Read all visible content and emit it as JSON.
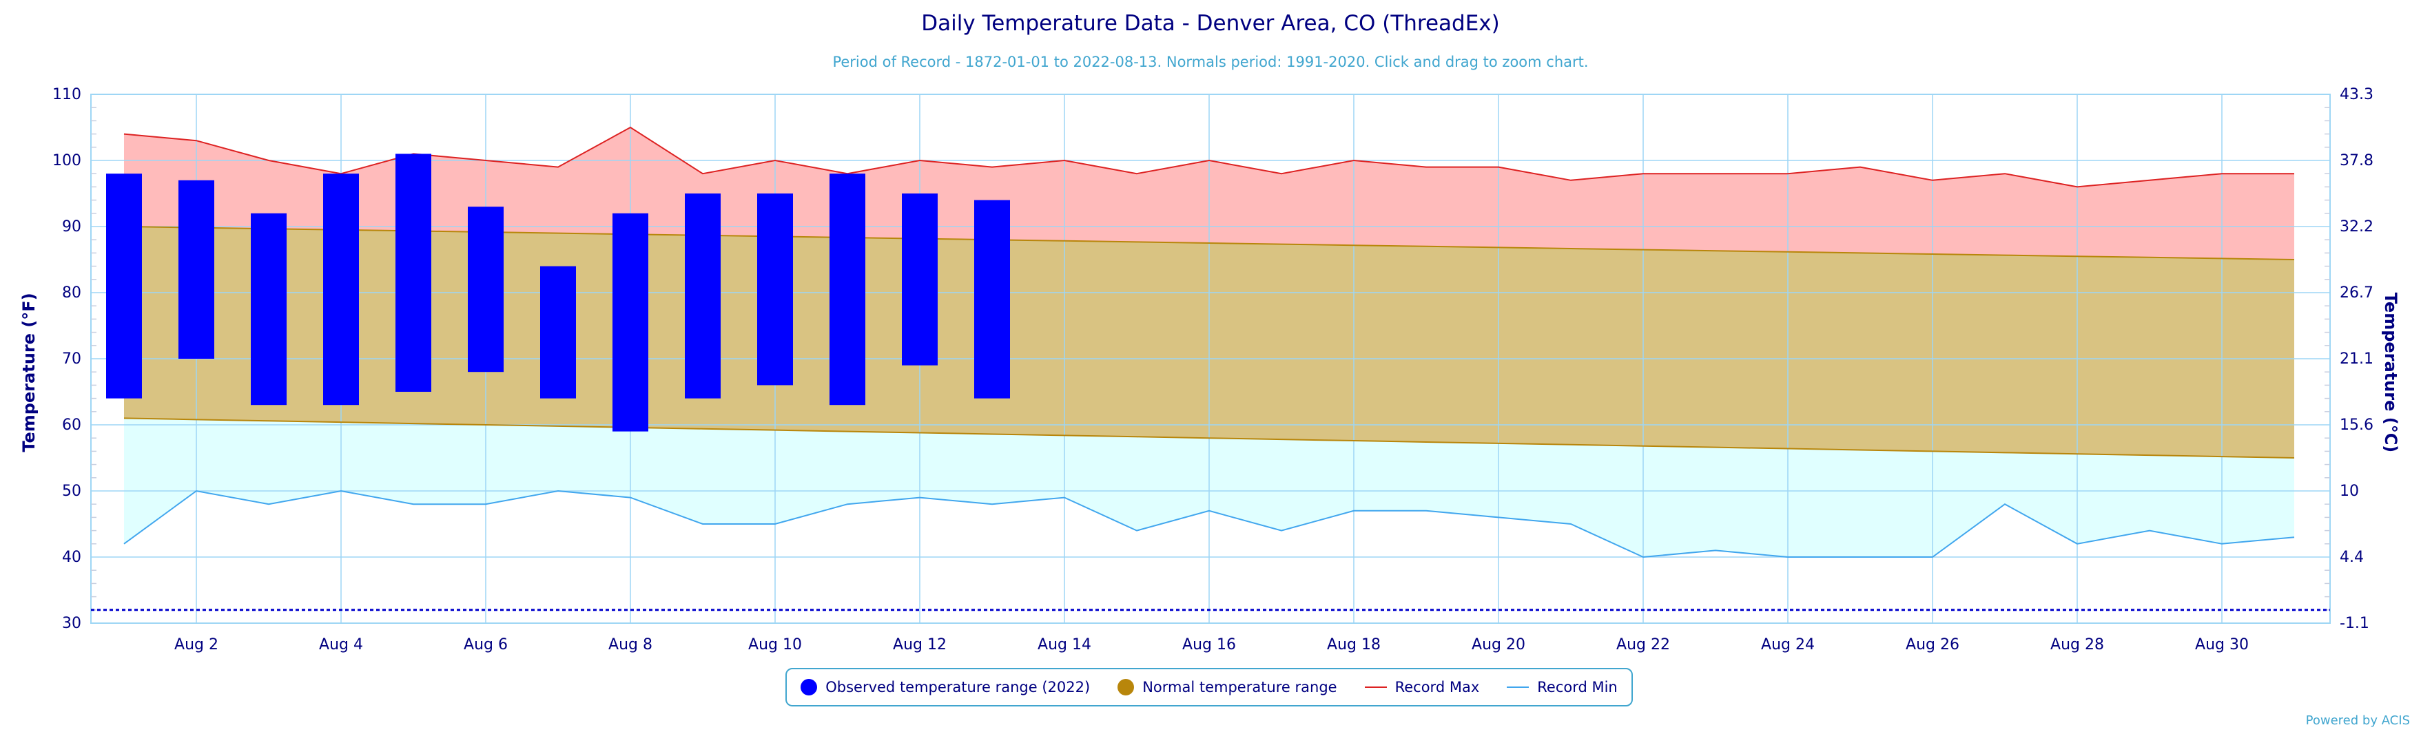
{
  "colors": {
    "text": "#000080",
    "subtitle": "#41a6cf",
    "observed": "#0000ff",
    "normal_fill": "#d9c382",
    "normal_edge": "#b8860b",
    "record_max_fill": "#ffbbbb",
    "record_max_line": "#dd2222",
    "record_min_fill": "#e0ffff",
    "record_min_line": "#41a6ee",
    "grid": "#9ed6f5",
    "freeze_line": "#0000cc"
  },
  "chart_data": {
    "type": "bar",
    "title": "Daily Temperature Data - Denver Area, CO (ThreadEx)",
    "subtitle": "Period of Record - 1872-01-01 to 2022-08-13. Normals period: 1991-2020. Click and drag to zoom chart.",
    "ylabel": "Temperature (°F)",
    "ylabel_right": "Temperature (°C)",
    "ylim": [
      30,
      110
    ],
    "y_ticks": [
      "30",
      "40",
      "50",
      "60",
      "70",
      "80",
      "90",
      "100",
      "110"
    ],
    "y_ticks_right": [
      "-1.1",
      "4.4",
      "10",
      "15.6",
      "21.1",
      "26.7",
      "32.2",
      "37.8",
      "43.3"
    ],
    "x_days": [
      1,
      2,
      3,
      4,
      5,
      6,
      7,
      8,
      9,
      10,
      11,
      12,
      13,
      14,
      15,
      16,
      17,
      18,
      19,
      20,
      21,
      22,
      23,
      24,
      25,
      26,
      27,
      28,
      29,
      30,
      31
    ],
    "x_tick_labels": [
      "Aug 2",
      "Aug 4",
      "Aug 6",
      "Aug 8",
      "Aug 10",
      "Aug 12",
      "Aug 14",
      "Aug 16",
      "Aug 18",
      "Aug 20",
      "Aug 22",
      "Aug 24",
      "Aug 26",
      "Aug 28",
      "Aug 30"
    ],
    "x_tick_days": [
      2,
      4,
      6,
      8,
      10,
      12,
      14,
      16,
      18,
      20,
      22,
      24,
      26,
      28,
      30
    ],
    "record_max": [
      104,
      103,
      100,
      98,
      101,
      100,
      99,
      105,
      98,
      100,
      98,
      100,
      99,
      100,
      98,
      100,
      98,
      100,
      99,
      99,
      97,
      98,
      98,
      98,
      99,
      97,
      98,
      96,
      97,
      98,
      98
    ],
    "record_min": [
      42,
      50,
      48,
      50,
      48,
      48,
      50,
      49,
      45,
      45,
      48,
      49,
      48,
      49,
      44,
      47,
      44,
      47,
      47,
      46,
      45,
      40,
      41,
      40,
      40,
      40,
      48,
      42,
      44,
      42,
      43
    ],
    "normal_max_range": [
      90,
      85
    ],
    "normal_min_range": [
      61,
      55
    ],
    "freeze_line_value": 32,
    "series": [
      {
        "name": "Observed temperature range (2022)",
        "days": [
          1,
          2,
          3,
          4,
          5,
          6,
          7,
          8,
          9,
          10,
          11,
          12,
          13
        ],
        "high": [
          98,
          97,
          92,
          98,
          101,
          93,
          84,
          92,
          95,
          95,
          98,
          95,
          94
        ],
        "low": [
          64,
          70,
          63,
          63,
          65,
          68,
          64,
          59,
          64,
          66,
          63,
          69,
          64
        ]
      }
    ]
  },
  "legend": {
    "observed": "Observed temperature range (2022)",
    "normal": "Normal temperature range",
    "record_max": "Record Max",
    "record_min": "Record Min"
  },
  "credit": "Powered by ACIS"
}
